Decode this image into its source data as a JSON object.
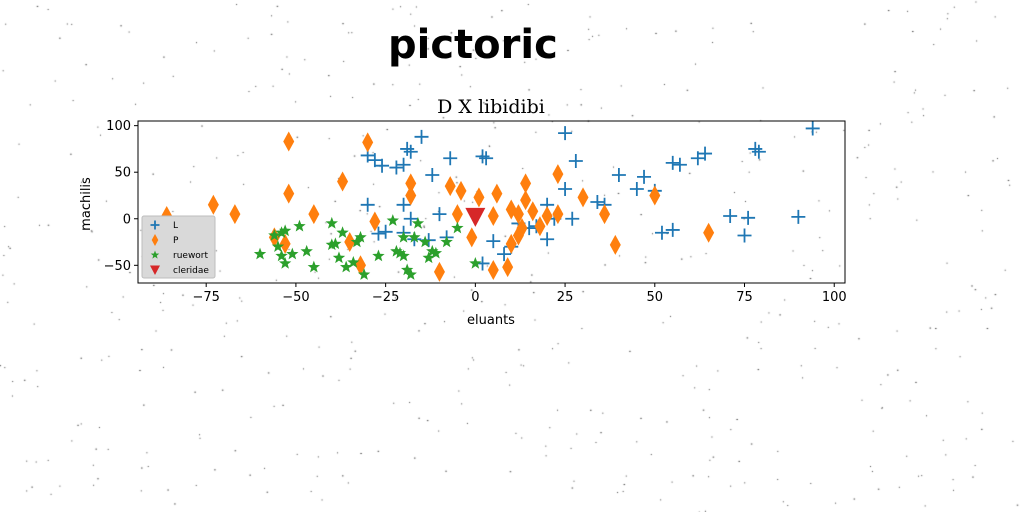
{
  "header": {
    "title": "pictoric"
  },
  "chart_data": {
    "type": "scatter",
    "title": "D X libidibi",
    "xlabel": "eluants",
    "ylabel": "machilis",
    "xlim": [
      -94,
      103
    ],
    "ylim": [
      -69,
      105
    ],
    "xticks": [
      -75,
      -50,
      -25,
      0,
      25,
      50,
      75,
      100
    ],
    "yticks": [
      -50,
      0,
      50,
      100
    ],
    "grid": false,
    "legend_position": "lower-left",
    "series": [
      {
        "name": "L",
        "marker": "plus",
        "color": "#1f77b4",
        "points": [
          [
            94,
            97
          ],
          [
            25,
            92
          ],
          [
            -15,
            88
          ],
          [
            -30,
            68
          ],
          [
            -28,
            63
          ],
          [
            -26,
            57
          ],
          [
            -22,
            55
          ],
          [
            -19,
            75
          ],
          [
            -18,
            72
          ],
          [
            -7,
            65
          ],
          [
            2,
            67
          ],
          [
            3,
            65
          ],
          [
            -20,
            58
          ],
          [
            -12,
            47
          ],
          [
            28,
            62
          ],
          [
            40,
            47
          ],
          [
            45,
            32
          ],
          [
            47,
            45
          ],
          [
            50,
            30
          ],
          [
            55,
            60
          ],
          [
            57,
            58
          ],
          [
            62,
            65
          ],
          [
            64,
            70
          ],
          [
            78,
            75
          ],
          [
            79,
            72
          ],
          [
            -30,
            15
          ],
          [
            -20,
            15
          ],
          [
            -18,
            0
          ],
          [
            -10,
            5
          ],
          [
            -8,
            -20
          ],
          [
            -20,
            -15
          ],
          [
            -17,
            -22
          ],
          [
            -13,
            -23
          ],
          [
            20,
            15
          ],
          [
            22,
            0
          ],
          [
            27,
            0
          ],
          [
            36,
            15
          ],
          [
            34,
            18
          ],
          [
            20,
            -22
          ],
          [
            8,
            -38
          ],
          [
            5,
            -24
          ],
          [
            17,
            -8
          ],
          [
            71,
            3
          ],
          [
            76,
            1
          ],
          [
            90,
            2
          ],
          [
            52,
            -15
          ],
          [
            55,
            -12
          ],
          [
            75,
            -18
          ],
          [
            15,
            -10
          ],
          [
            12,
            -5
          ],
          [
            10,
            -30
          ],
          [
            -27,
            -16
          ],
          [
            -25,
            -14
          ],
          [
            25,
            32
          ],
          [
            2,
            -48
          ]
        ]
      },
      {
        "name": "P",
        "marker": "thin_diamond",
        "color": "#ff7f0e",
        "points": [
          [
            -52,
            83
          ],
          [
            -30,
            82
          ],
          [
            -52,
            27
          ],
          [
            -37,
            40
          ],
          [
            -18,
            38
          ],
          [
            -18,
            25
          ],
          [
            -45,
            5
          ],
          [
            -28,
            -3
          ],
          [
            -7,
            35
          ],
          [
            -4,
            30
          ],
          [
            1,
            23
          ],
          [
            6,
            27
          ],
          [
            5,
            3
          ],
          [
            14,
            38
          ],
          [
            10,
            10
          ],
          [
            12,
            5
          ],
          [
            16,
            8
          ],
          [
            18,
            -8
          ],
          [
            20,
            3
          ],
          [
            23,
            5
          ],
          [
            23,
            48
          ],
          [
            30,
            23
          ],
          [
            36,
            5
          ],
          [
            39,
            -28
          ],
          [
            50,
            25
          ],
          [
            65,
            -15
          ],
          [
            -86,
            3
          ],
          [
            -73,
            15
          ],
          [
            -67,
            5
          ],
          [
            -56,
            -20
          ],
          [
            -53,
            -27
          ],
          [
            -35,
            -25
          ],
          [
            -32,
            -50
          ],
          [
            -10,
            -57
          ],
          [
            -5,
            5
          ],
          [
            -1,
            -20
          ],
          [
            5,
            -55
          ],
          [
            9,
            -52
          ],
          [
            10,
            -27
          ],
          [
            12,
            -18
          ],
          [
            14,
            20
          ],
          [
            13,
            -10
          ]
        ]
      },
      {
        "name": "ruewort",
        "marker": "star",
        "color": "#2ca02c",
        "points": [
          [
            -60,
            -38
          ],
          [
            -56,
            -18
          ],
          [
            -55,
            -30
          ],
          [
            -54,
            -40
          ],
          [
            -54,
            -15
          ],
          [
            -53,
            -13
          ],
          [
            -53,
            -48
          ],
          [
            -51,
            -38
          ],
          [
            -49,
            -8
          ],
          [
            -47,
            -35
          ],
          [
            -45,
            -52
          ],
          [
            -40,
            -28
          ],
          [
            -40,
            -5
          ],
          [
            -39,
            -27
          ],
          [
            -37,
            -15
          ],
          [
            -38,
            -42
          ],
          [
            -36,
            -52
          ],
          [
            -34,
            -47
          ],
          [
            -33,
            -25
          ],
          [
            -32,
            -20
          ],
          [
            -31,
            -60
          ],
          [
            -27,
            -40
          ],
          [
            -23,
            -2
          ],
          [
            -22,
            -35
          ],
          [
            -21,
            -37
          ],
          [
            -20,
            -20
          ],
          [
            -20,
            -40
          ],
          [
            -19,
            -55
          ],
          [
            -18,
            -60
          ],
          [
            -17,
            -20
          ],
          [
            -16,
            -5
          ],
          [
            -14,
            -25
          ],
          [
            -13,
            -42
          ],
          [
            -12,
            -35
          ],
          [
            -11,
            -37
          ],
          [
            -8,
            -25
          ],
          [
            -5,
            -10
          ],
          [
            0,
            -48
          ]
        ]
      },
      {
        "name": "cleridae",
        "marker": "triangle_down",
        "color": "#d62728",
        "points": [
          [
            0,
            2
          ]
        ]
      }
    ]
  }
}
